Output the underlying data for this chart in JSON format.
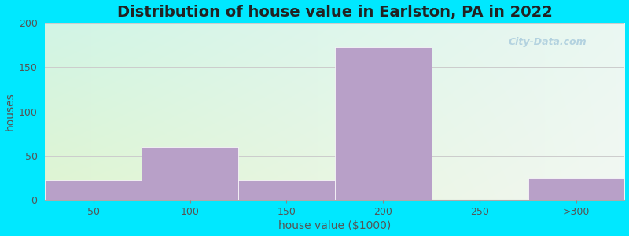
{
  "title": "Distribution of house value in Earlston, PA in 2022",
  "xlabel": "house value ($1000)",
  "ylabel": "houses",
  "categories": [
    "50",
    "100",
    "150",
    "200",
    "250",
    ">300"
  ],
  "values": [
    22,
    60,
    22,
    172,
    0,
    25
  ],
  "bar_color": "#b8a0c8",
  "bar_edgecolor": "#b8a0c8",
  "ylim": [
    0,
    200
  ],
  "yticks": [
    0,
    50,
    100,
    150,
    200
  ],
  "background_outer": "#00e8ff",
  "grad_topleft": [
    0.88,
    0.96,
    0.82
  ],
  "grad_topright": [
    0.95,
    0.97,
    0.95
  ],
  "grad_bottomleft": [
    0.82,
    0.96,
    0.9
  ],
  "grad_bottomright": [
    0.92,
    0.97,
    0.95
  ],
  "grid_color": "#cccccc",
  "title_fontsize": 14,
  "axis_label_fontsize": 10,
  "tick_fontsize": 9,
  "watermark": "City-Data.com"
}
